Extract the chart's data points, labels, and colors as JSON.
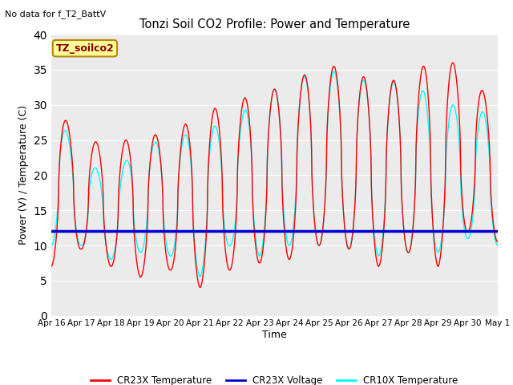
{
  "title": "Tonzi Soil CO2 Profile: Power and Temperature",
  "subtitle": "No data for f_T2_BattV",
  "ylabel": "Power (V) / Temperature (C)",
  "xlabel": "Time",
  "ylim": [
    0,
    40
  ],
  "x_tick_labels": [
    "Apr 16",
    "Apr 17",
    "Apr 18",
    "Apr 19",
    "Apr 20",
    "Apr 21",
    "Apr 22",
    "Apr 23",
    "Apr 24",
    "Apr 25",
    "Apr 26",
    "Apr 27",
    "Apr 28",
    "Apr 29",
    "Apr 30",
    "May 1"
  ],
  "legend_label_box": "TZ_soilco2",
  "cr23x_color": "#FF0000",
  "cr10x_color": "#00FFFF",
  "voltage_color": "#0000CD",
  "background_color": "#FFFFFF",
  "plot_bg_color": "#EBEBEB",
  "voltage_value": 12.0,
  "cr23x_peaks": [
    30.0,
    25.5,
    24.0,
    26.0,
    25.5,
    29.0,
    30.0,
    32.0,
    32.5,
    36.0,
    35.0,
    33.0,
    34.0,
    37.0,
    35.0,
    29.0
  ],
  "cr23x_troughs": [
    7.0,
    9.5,
    7.0,
    5.5,
    6.5,
    4.0,
    6.5,
    7.5,
    8.0,
    10.0,
    9.5,
    7.0,
    9.0,
    7.0,
    12.0,
    10.5
  ],
  "cr10x_peaks": [
    29.5,
    23.0,
    19.0,
    25.0,
    24.5,
    27.0,
    27.0,
    31.5,
    33.0,
    35.0,
    34.5,
    32.5,
    34.0,
    30.0,
    30.0,
    28.0
  ],
  "cr10x_troughs": [
    10.0,
    10.0,
    8.0,
    9.0,
    8.5,
    5.5,
    10.0,
    8.5,
    10.0,
    10.0,
    9.5,
    8.5,
    9.0,
    9.0,
    11.0,
    10.0
  ]
}
